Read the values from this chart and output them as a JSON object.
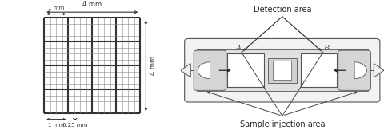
{
  "bg_color": "#ffffff",
  "grid_line_color": "#888888",
  "grid_major_color": "#333333",
  "grid_major_lw": 1.5,
  "grid_minor_lw": 0.4,
  "grid_n_major": 4,
  "grid_n_minor_per_major": 4,
  "dim_color": "#333333",
  "label_4mm_top": "4 mm",
  "label_4mm_right": "4 mm",
  "label_1mm_top": "1 mm",
  "label_1mm_bottom": "1 mm",
  "label_025mm": "0.25 mm",
  "detection_label": "Detection area",
  "injection_label": "Sample injection area",
  "chip_A": "A",
  "chip_B": "B",
  "font_size_dim": 6,
  "font_size_chip": 7,
  "outline_color": "#555555",
  "chip_face": "#e8e8e8",
  "chip_inner_face": "#f0f0f0",
  "chip_dark": "#bbbbbb"
}
